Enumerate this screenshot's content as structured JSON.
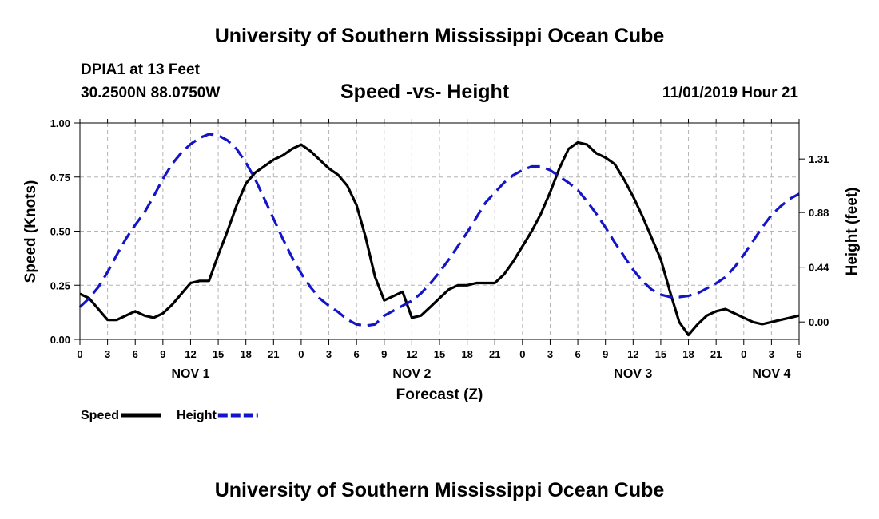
{
  "header": {
    "title": "University of Southern Mississippi Ocean Cube",
    "station": "DPIA1 at 13 Feet",
    "coordinates": "30.2500N 88.0750W",
    "chart_title": "Speed -vs- Height",
    "datetime": "11/01/2019 Hour 21"
  },
  "footer": {
    "title": "University of Southern Mississippi Ocean Cube"
  },
  "colors": {
    "speed": "#000000",
    "height": "#1414c8",
    "grid": "#b4b4b4"
  },
  "chart_data": {
    "type": "line",
    "title": "Speed -vs- Height",
    "xlabel": "Forecast (Z)",
    "ylabel": "Speed (Knots)",
    "y2label": "Height (feet)",
    "x_unit": "hours from 11/01/2019 00Z",
    "xlim": [
      0,
      78
    ],
    "ylim": [
      0,
      1
    ],
    "y2lim": [
      -0.14,
      1.6
    ],
    "grid": true,
    "x_ticks": [
      0,
      3,
      6,
      9,
      12,
      15,
      18,
      21,
      24,
      27,
      30,
      33,
      36,
      39,
      42,
      45,
      48,
      51,
      54,
      57,
      60,
      63,
      66,
      69,
      72,
      75,
      78
    ],
    "x_tick_labels": [
      "0",
      "3",
      "6",
      "9",
      "12",
      "15",
      "18",
      "21",
      "0",
      "3",
      "6",
      "9",
      "12",
      "15",
      "18",
      "21",
      "0",
      "3",
      "6",
      "9",
      "12",
      "15",
      "18",
      "21",
      "0",
      "3",
      "6"
    ],
    "y_ticks": [
      0,
      0.25,
      0.5,
      0.75,
      1
    ],
    "y_tick_labels": [
      "0.00",
      "0.25",
      "0.50",
      "0.75",
      "1.00"
    ],
    "y2_ticks": [
      0,
      0.44,
      0.88,
      1.31
    ],
    "y2_tick_labels": [
      "0.00",
      "0.44",
      "0.88",
      "1.31"
    ],
    "day_labels": [
      {
        "label": "NOV 1",
        "x": 12
      },
      {
        "label": "NOV 2",
        "x": 36
      },
      {
        "label": "NOV 3",
        "x": 60
      },
      {
        "label": "NOV 4",
        "x": 75
      }
    ],
    "legend": [
      {
        "name": "Speed",
        "style": "solid"
      },
      {
        "name": "Height",
        "style": "dashed"
      }
    ],
    "series": [
      {
        "name": "Speed",
        "axis": "left",
        "style": "solid",
        "x": [
          0,
          1,
          2,
          3,
          4,
          5,
          6,
          7,
          8,
          9,
          10,
          11,
          12,
          13,
          14,
          15,
          16,
          17,
          18,
          19,
          20,
          21,
          22,
          23,
          24,
          25,
          26,
          27,
          28,
          29,
          30,
          31,
          32,
          33,
          34,
          35,
          36,
          37,
          38,
          39,
          40,
          41,
          42,
          43,
          44,
          45,
          46,
          47,
          48,
          49,
          50,
          51,
          52,
          53,
          54,
          55,
          56,
          57,
          58,
          59,
          60,
          61,
          62,
          63,
          64,
          65,
          66,
          67,
          68,
          69,
          70,
          71,
          72,
          73,
          74,
          75,
          76,
          77,
          78
        ],
        "values": [
          0.21,
          0.19,
          0.14,
          0.09,
          0.09,
          0.11,
          0.13,
          0.11,
          0.1,
          0.12,
          0.16,
          0.21,
          0.26,
          0.27,
          0.27,
          0.39,
          0.5,
          0.62,
          0.72,
          0.77,
          0.8,
          0.83,
          0.85,
          0.88,
          0.9,
          0.87,
          0.83,
          0.79,
          0.76,
          0.71,
          0.62,
          0.47,
          0.29,
          0.18,
          0.2,
          0.22,
          0.1,
          0.11,
          0.15,
          0.19,
          0.23,
          0.25,
          0.25,
          0.26,
          0.26,
          0.26,
          0.3,
          0.36,
          0.43,
          0.5,
          0.58,
          0.68,
          0.79,
          0.88,
          0.91,
          0.9,
          0.86,
          0.84,
          0.81,
          0.74,
          0.66,
          0.57,
          0.47,
          0.37,
          0.22,
          0.08,
          0.02,
          0.07,
          0.11,
          0.13,
          0.14,
          0.12,
          0.1,
          0.08,
          0.07,
          0.08,
          0.09,
          0.1,
          0.11
        ]
      },
      {
        "name": "Height",
        "axis": "right",
        "style": "dashed",
        "x": [
          0,
          1,
          2,
          3,
          4,
          5,
          6,
          7,
          8,
          9,
          10,
          11,
          12,
          13,
          14,
          15,
          16,
          17,
          18,
          19,
          20,
          21,
          22,
          23,
          24,
          25,
          26,
          27,
          28,
          29,
          30,
          31,
          32,
          33,
          34,
          35,
          36,
          37,
          38,
          39,
          40,
          41,
          42,
          43,
          44,
          45,
          46,
          47,
          48,
          49,
          50,
          51,
          52,
          53,
          54,
          55,
          56,
          57,
          58,
          59,
          60,
          61,
          62,
          63,
          64,
          65,
          66,
          67,
          68,
          69,
          70,
          71,
          72,
          73,
          74,
          75,
          76,
          77,
          78
        ],
        "values": [
          0.12,
          0.19,
          0.28,
          0.4,
          0.54,
          0.67,
          0.78,
          0.88,
          1.01,
          1.15,
          1.27,
          1.36,
          1.43,
          1.48,
          1.51,
          1.5,
          1.46,
          1.39,
          1.28,
          1.15,
          0.99,
          0.83,
          0.67,
          0.52,
          0.39,
          0.28,
          0.19,
          0.13,
          0.08,
          0.02,
          -0.02,
          -0.03,
          -0.02,
          0.05,
          0.09,
          0.13,
          0.17,
          0.23,
          0.31,
          0.4,
          0.5,
          0.61,
          0.72,
          0.84,
          0.96,
          1.04,
          1.12,
          1.18,
          1.22,
          1.25,
          1.25,
          1.22,
          1.17,
          1.12,
          1.06,
          0.97,
          0.87,
          0.76,
          0.64,
          0.53,
          0.42,
          0.33,
          0.26,
          0.22,
          0.2,
          0.2,
          0.21,
          0.23,
          0.27,
          0.31,
          0.36,
          0.44,
          0.54,
          0.65,
          0.76,
          0.86,
          0.93,
          0.99,
          1.03
        ]
      }
    ]
  }
}
